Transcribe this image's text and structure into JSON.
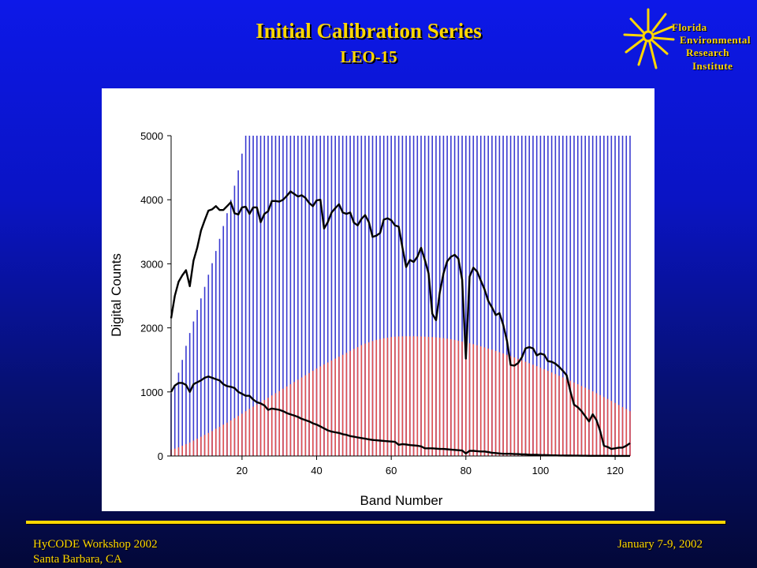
{
  "header": {
    "title": "Initial Calibration Series",
    "subtitle": "LEO-15"
  },
  "logo": {
    "line1": "Florida",
    "line2": "Environmental",
    "line3": "Research",
    "line4": "Institute",
    "color": "#ffd700"
  },
  "footer": {
    "left_line1": "HyCODE Workshop 2002",
    "left_line2": "Santa Barbara, CA",
    "right": "January 7-9, 2002"
  },
  "chart_data": {
    "type": "line",
    "xlabel": "Band Number",
    "ylabel": "Digital Counts",
    "xlim": [
      1,
      124
    ],
    "ylim": [
      0,
      5000
    ],
    "xticks": [
      20,
      40,
      60,
      80,
      100,
      120
    ],
    "yticks": [
      0,
      1000,
      2000,
      3000,
      4000,
      5000
    ],
    "grid": false,
    "series": [
      {
        "kind": "vbars",
        "color": "#3b3bd1",
        "x": [
          1,
          2,
          3,
          4,
          5,
          6,
          7,
          8,
          9,
          10,
          11,
          12,
          13,
          14,
          15,
          16,
          17,
          18,
          19,
          20,
          21,
          22,
          23,
          24,
          25,
          26,
          27,
          28,
          29,
          30,
          31,
          32,
          33,
          34,
          35,
          36,
          37,
          38,
          39,
          40,
          41,
          42,
          43,
          44,
          45,
          46,
          47,
          48,
          49,
          50,
          51,
          52,
          53,
          54,
          55,
          56,
          57,
          58,
          59,
          60,
          61,
          62,
          63,
          64,
          65,
          66,
          67,
          68,
          69,
          70,
          71,
          72,
          73,
          74,
          75,
          76,
          77,
          78,
          79,
          80,
          81,
          82,
          83,
          84,
          85,
          86,
          87,
          88,
          89,
          90,
          91,
          92,
          93,
          94,
          95,
          96,
          97,
          98,
          99,
          100,
          101,
          102,
          103,
          104,
          105,
          106,
          107,
          108,
          109,
          110,
          111,
          112,
          113,
          114,
          115,
          116,
          117,
          118,
          119,
          120,
          121,
          122,
          123,
          124
        ],
        "values": [
          980,
          1100,
          1300,
          1500,
          1720,
          1920,
          2100,
          2280,
          2460,
          2640,
          2830,
          3010,
          3200,
          3390,
          3590,
          3790,
          4000,
          4220,
          4460,
          4720,
          5000,
          5000,
          5000,
          5000,
          5000,
          5000,
          5000,
          5000,
          5000,
          5000,
          5000,
          5000,
          5000,
          5000,
          5000,
          5000,
          5000,
          5000,
          5000,
          5000,
          5000,
          5000,
          5000,
          5000,
          5000,
          5000,
          5000,
          5000,
          5000,
          5000,
          5000,
          5000,
          5000,
          5000,
          5000,
          5000,
          5000,
          5000,
          5000,
          5000,
          5000,
          5000,
          5000,
          5000,
          5000,
          5000,
          5000,
          5000,
          5000,
          5000,
          5000,
          5000,
          5000,
          5000,
          5000,
          5000,
          5000,
          5000,
          5000,
          5000,
          5000,
          5000,
          5000,
          5000,
          5000,
          5000,
          5000,
          5000,
          5000,
          5000,
          5000,
          5000,
          5000,
          5000,
          5000,
          5000,
          5000,
          5000,
          5000,
          5000,
          5000,
          5000,
          5000,
          5000,
          5000,
          5000,
          5000,
          5000,
          5000,
          5000,
          5000,
          5000,
          5000,
          5000,
          5000,
          5000,
          5000,
          5000,
          5000,
          5000,
          5000,
          5000,
          5000,
          5000
        ]
      },
      {
        "kind": "vbars",
        "color": "#e05050",
        "x": [
          1,
          2,
          3,
          4,
          5,
          6,
          7,
          8,
          9,
          10,
          11,
          12,
          13,
          14,
          15,
          16,
          17,
          18,
          19,
          20,
          21,
          22,
          23,
          24,
          25,
          26,
          27,
          28,
          29,
          30,
          31,
          32,
          33,
          34,
          35,
          36,
          37,
          38,
          39,
          40,
          41,
          42,
          43,
          44,
          45,
          46,
          47,
          48,
          49,
          50,
          51,
          52,
          53,
          54,
          55,
          56,
          57,
          58,
          59,
          60,
          61,
          62,
          63,
          64,
          65,
          66,
          67,
          68,
          69,
          70,
          71,
          72,
          73,
          74,
          75,
          76,
          77,
          78,
          79,
          80,
          81,
          82,
          83,
          84,
          85,
          86,
          87,
          88,
          89,
          90,
          91,
          92,
          93,
          94,
          95,
          96,
          97,
          98,
          99,
          100,
          101,
          102,
          103,
          104,
          105,
          106,
          107,
          108,
          109,
          110,
          111,
          112,
          113,
          114,
          115,
          116,
          117,
          118,
          119,
          120,
          121,
          122,
          123,
          124
        ],
        "values": [
          100,
          115,
          135,
          160,
          185,
          210,
          240,
          270,
          300,
          330,
          360,
          390,
          425,
          455,
          490,
          520,
          555,
          590,
          625,
          660,
          700,
          735,
          770,
          805,
          840,
          875,
          910,
          945,
          980,
          1015,
          1050,
          1085,
          1120,
          1155,
          1190,
          1225,
          1260,
          1295,
          1330,
          1365,
          1400,
          1430,
          1460,
          1490,
          1520,
          1550,
          1580,
          1610,
          1640,
          1670,
          1700,
          1730,
          1755,
          1775,
          1795,
          1812,
          1826,
          1838,
          1848,
          1856,
          1862,
          1866,
          1868,
          1869,
          1869,
          1869,
          1868,
          1866,
          1863,
          1860,
          1856,
          1852,
          1846,
          1840,
          1832,
          1823,
          1812,
          1800,
          1788,
          1774,
          1760,
          1745,
          1729,
          1712,
          1695,
          1677,
          1659,
          1640,
          1620,
          1600,
          1580,
          1559,
          1538,
          1516,
          1494,
          1472,
          1449,
          1426,
          1402,
          1378,
          1354,
          1329,
          1304,
          1279,
          1253,
          1227,
          1200,
          1174,
          1147,
          1120,
          1093,
          1065,
          1037,
          1009,
          980,
          950,
          920,
          890,
          860,
          828,
          796,
          764,
          732,
          700
        ]
      },
      {
        "name": "",
        "kind": "line",
        "color": "#000000",
        "x": [
          1,
          2,
          3,
          4,
          5,
          6,
          7,
          8,
          9,
          10,
          11,
          12,
          13,
          14,
          15,
          16,
          17,
          18,
          19,
          20,
          21,
          22,
          23,
          24,
          25,
          26,
          27,
          28,
          29,
          30,
          31,
          32,
          33,
          34,
          35,
          36,
          37,
          38,
          39,
          40,
          41,
          42,
          43,
          44,
          45,
          46,
          47,
          48,
          49,
          50,
          51,
          52,
          53,
          54,
          55,
          56,
          57,
          58,
          59,
          60,
          61,
          62,
          63,
          64,
          65,
          66,
          67,
          68,
          69,
          70,
          71,
          72,
          73,
          74,
          75,
          76,
          77,
          78,
          79,
          80,
          81,
          82,
          83,
          84,
          85,
          86,
          87,
          88,
          89,
          90,
          91,
          92,
          93,
          94,
          95,
          96,
          97,
          98,
          99,
          100,
          101,
          102,
          103,
          104,
          105,
          106,
          107,
          108,
          109,
          110,
          111,
          112,
          113,
          114,
          115,
          116,
          117,
          118,
          119,
          120,
          121,
          122,
          123,
          124
        ],
        "values": [
          2150,
          2500,
          2720,
          2820,
          2900,
          2650,
          3050,
          3250,
          3520,
          3680,
          3830,
          3850,
          3900,
          3840,
          3840,
          3900,
          3960,
          3790,
          3770,
          3880,
          3890,
          3780,
          3880,
          3880,
          3650,
          3780,
          3820,
          3980,
          3980,
          3970,
          4000,
          4060,
          4130,
          4090,
          4050,
          4070,
          4030,
          3950,
          3900,
          3990,
          4000,
          3550,
          3650,
          3800,
          3870,
          3930,
          3800,
          3780,
          3800,
          3640,
          3600,
          3700,
          3760,
          3650,
          3420,
          3440,
          3480,
          3690,
          3710,
          3680,
          3600,
          3580,
          3250,
          2950,
          3060,
          3030,
          3110,
          3250,
          3060,
          2850,
          2220,
          2120,
          2550,
          2850,
          3040,
          3110,
          3140,
          3080,
          2750,
          1520,
          2800,
          2940,
          2880,
          2740,
          2600,
          2420,
          2320,
          2200,
          2230,
          2050,
          1800,
          1420,
          1410,
          1450,
          1540,
          1680,
          1700,
          1680,
          1570,
          1600,
          1580,
          1480,
          1470,
          1440,
          1390,
          1330,
          1260,
          1010,
          800,
          760,
          700,
          620,
          540,
          650,
          560,
          390,
          160,
          140,
          110,
          120,
          130,
          130,
          160,
          200
        ]
      },
      {
        "name": "",
        "kind": "line",
        "color": "#000000",
        "x": [
          1,
          2,
          3,
          4,
          5,
          6,
          7,
          8,
          9,
          10,
          11,
          12,
          13,
          14,
          15,
          16,
          17,
          18,
          19,
          20,
          21,
          22,
          23,
          24,
          25,
          26,
          27,
          28,
          29,
          30,
          31,
          32,
          33,
          34,
          35,
          36,
          37,
          38,
          39,
          40,
          41,
          42,
          43,
          44,
          45,
          46,
          47,
          48,
          49,
          50,
          51,
          52,
          53,
          54,
          55,
          56,
          57,
          58,
          59,
          60,
          61,
          62,
          63,
          64,
          65,
          66,
          67,
          68,
          69,
          70,
          71,
          72,
          73,
          74,
          75,
          76,
          77,
          78,
          79,
          80,
          81,
          82,
          83,
          84,
          85,
          86,
          87,
          88,
          89,
          90,
          91,
          92,
          93,
          94,
          95,
          96,
          97,
          98,
          99,
          100,
          101,
          102,
          103,
          104,
          105,
          106,
          107,
          108,
          109,
          110,
          111,
          112,
          113,
          114,
          115,
          116,
          117,
          118,
          119,
          120,
          121,
          122,
          123,
          124
        ],
        "values": [
          1000,
          1100,
          1140,
          1140,
          1110,
          1000,
          1120,
          1150,
          1180,
          1220,
          1240,
          1220,
          1200,
          1180,
          1120,
          1090,
          1080,
          1060,
          1000,
          970,
          940,
          940,
          880,
          840,
          820,
          790,
          720,
          740,
          730,
          720,
          700,
          670,
          650,
          630,
          610,
          580,
          560,
          540,
          510,
          490,
          460,
          430,
          400,
          380,
          370,
          360,
          340,
          330,
          310,
          300,
          290,
          280,
          270,
          260,
          250,
          245,
          240,
          235,
          230,
          225,
          220,
          175,
          185,
          180,
          170,
          165,
          160,
          150,
          120,
          120,
          120,
          115,
          110,
          110,
          105,
          100,
          95,
          90,
          85,
          40,
          80,
          80,
          75,
          70,
          70,
          60,
          50,
          45,
          40,
          35,
          35,
          35,
          30,
          30,
          25,
          25,
          20,
          20,
          18,
          15,
          15,
          12,
          10,
          10,
          8,
          8,
          6,
          6,
          5,
          5,
          4,
          4,
          3,
          3,
          2,
          2,
          2,
          2,
          1,
          1,
          1,
          1,
          1,
          1
        ]
      }
    ]
  }
}
